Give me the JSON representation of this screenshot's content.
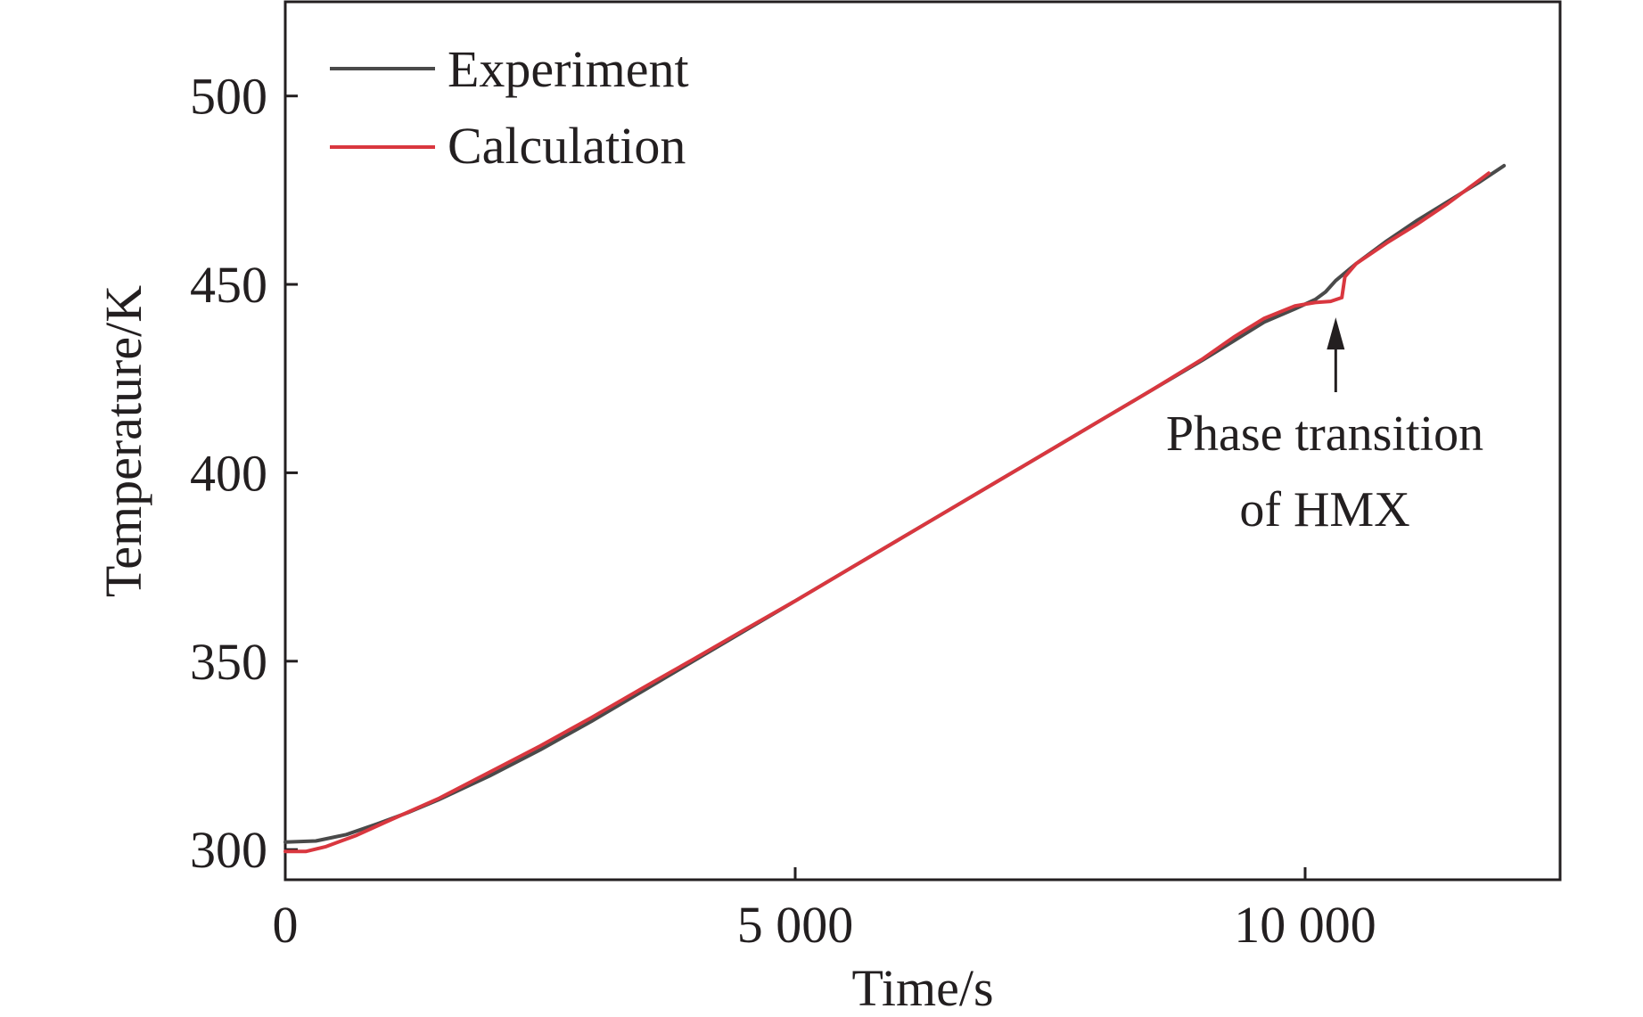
{
  "chart_data": {
    "type": "line",
    "xlabel": "Time/s",
    "ylabel": "Temperature/K",
    "xlim": [
      0,
      12500
    ],
    "ylim": [
      292,
      525
    ],
    "x_ticks": [
      0,
      5000,
      10000
    ],
    "x_tick_labels": [
      "0",
      "5 000",
      "10 000"
    ],
    "y_ticks": [
      300,
      350,
      400,
      450,
      500
    ],
    "y_tick_labels": [
      "300",
      "350",
      "400",
      "450",
      "500"
    ],
    "grid": false,
    "legend_position": "top-left",
    "series": [
      {
        "name": "Experiment",
        "color": "#4a4a4a",
        "points": [
          [
            0,
            302.0
          ],
          [
            300,
            302.3
          ],
          [
            600,
            304.0
          ],
          [
            900,
            306.8
          ],
          [
            1200,
            309.8
          ],
          [
            1500,
            313.2
          ],
          [
            2000,
            319.5
          ],
          [
            2500,
            326.5
          ],
          [
            3000,
            334.0
          ],
          [
            3500,
            342.0
          ],
          [
            4000,
            350.0
          ],
          [
            4500,
            358.0
          ],
          [
            5000,
            366.0
          ],
          [
            5500,
            374.0
          ],
          [
            6000,
            382.0
          ],
          [
            6500,
            390.0
          ],
          [
            7000,
            398.0
          ],
          [
            7500,
            406.0
          ],
          [
            8000,
            414.0
          ],
          [
            8500,
            422.0
          ],
          [
            9000,
            430.0
          ],
          [
            9300,
            435.0
          ],
          [
            9600,
            440.0
          ],
          [
            9900,
            443.5
          ],
          [
            10100,
            446.0
          ],
          [
            10200,
            448.0
          ],
          [
            10300,
            451.0
          ],
          [
            10500,
            455.5
          ],
          [
            10800,
            461.5
          ],
          [
            11100,
            467.0
          ],
          [
            11400,
            472.0
          ],
          [
            11700,
            477.0
          ],
          [
            11950,
            481.5
          ]
        ]
      },
      {
        "name": "Calculation",
        "color": "#d9373f",
        "points": [
          [
            0,
            299.5
          ],
          [
            200,
            299.5
          ],
          [
            400,
            300.8
          ],
          [
            700,
            303.8
          ],
          [
            1000,
            307.5
          ],
          [
            1500,
            313.5
          ],
          [
            2000,
            320.5
          ],
          [
            2500,
            327.5
          ],
          [
            3000,
            335.0
          ],
          [
            3500,
            342.8
          ],
          [
            4000,
            350.5
          ],
          [
            4500,
            358.3
          ],
          [
            5000,
            366.0
          ],
          [
            5500,
            374.0
          ],
          [
            6000,
            382.0
          ],
          [
            6500,
            390.0
          ],
          [
            7000,
            398.0
          ],
          [
            7500,
            406.0
          ],
          [
            8000,
            414.0
          ],
          [
            8500,
            422.0
          ],
          [
            9000,
            430.3
          ],
          [
            9300,
            436.0
          ],
          [
            9600,
            441.0
          ],
          [
            9900,
            444.3
          ],
          [
            10100,
            445.2
          ],
          [
            10250,
            445.5
          ],
          [
            10360,
            446.5
          ],
          [
            10390,
            452.0
          ],
          [
            10500,
            455.5
          ],
          [
            10800,
            461.0
          ],
          [
            11100,
            466.0
          ],
          [
            11400,
            471.5
          ],
          [
            11700,
            477.5
          ],
          [
            11800,
            479.5
          ]
        ]
      }
    ],
    "annotations": [
      {
        "text_lines": [
          "Phase transition",
          "of HMX"
        ],
        "arrow_target": [
          10300,
          445.5
        ]
      }
    ]
  }
}
